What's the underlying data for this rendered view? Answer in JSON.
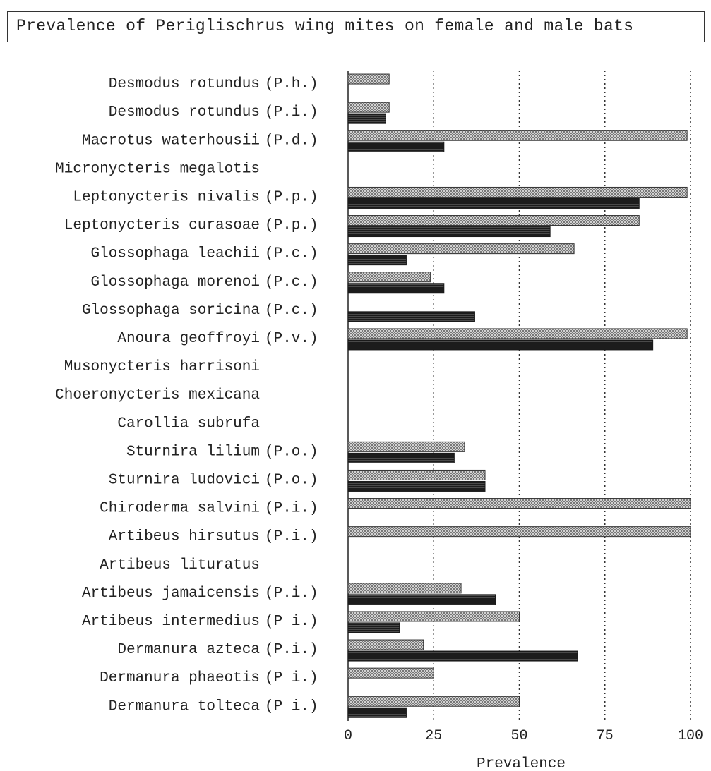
{
  "chart_data": {
    "type": "bar",
    "orientation": "horizontal",
    "title": "Prevalence of Periglischrus wing mites on female and male bats",
    "xlabel": "Prevalence",
    "ylabel": "",
    "xlim": [
      0,
      100
    ],
    "xticks": [
      "0",
      "25",
      "50",
      "75",
      "100"
    ],
    "grid": "vertical dotted lines at 25, 50, 75, 100",
    "legend": "none",
    "series_styles": {
      "female": {
        "fill": "#bdbdbd",
        "pattern": "checkered"
      },
      "male": {
        "fill": "#2e2e2e",
        "pattern": "horizontal lines"
      }
    },
    "categories": [
      {
        "species": "Desmodus  rotundus",
        "mite": "(P.h.)",
        "female": 12,
        "male": null
      },
      {
        "species": "Desmodus  rotundus",
        "mite": "(P.i.)",
        "female": 12,
        "male": 11
      },
      {
        "species": "Macrotus  waterhousii",
        "mite": "(P.d.)",
        "female": 99,
        "male": 28
      },
      {
        "species": "Micronycteris megalotis",
        "mite": "",
        "female": null,
        "male": null
      },
      {
        "species": "Leptonycteris nivalis",
        "mite": "(P.p.)",
        "female": 99,
        "male": 85
      },
      {
        "species": "Leptonycteris  curasoae",
        "mite": "(P.p.)",
        "female": 85,
        "male": 59
      },
      {
        "species": "Glossophaga leachii",
        "mite": "(P.c.)",
        "female": 66,
        "male": 17
      },
      {
        "species": "Glossophaga morenoi",
        "mite": "(P.c.)",
        "female": 24,
        "male": 28
      },
      {
        "species": "Glossophaga soricina",
        "mite": "(P.c.)",
        "female": null,
        "male": 37
      },
      {
        "species": "Anoura geoffroyi",
        "mite": "(P.v.)",
        "female": 99,
        "male": 89
      },
      {
        "species": "Musonycteris harrisoni",
        "mite": "",
        "female": null,
        "male": null
      },
      {
        "species": "Choeronycteris mexicana",
        "mite": "",
        "female": null,
        "male": null
      },
      {
        "species": "Carollia subrufa",
        "mite": "",
        "female": null,
        "male": null
      },
      {
        "species": "Sturnira lilium",
        "mite": "(P.o.)",
        "female": 34,
        "male": 31
      },
      {
        "species": "Sturnira ludovici",
        "mite": "(P.o.)",
        "female": 40,
        "male": 40
      },
      {
        "species": "Chiroderma salvini",
        "mite": "(P.i.)",
        "female": 100,
        "male": null
      },
      {
        "species": "Artibeus hirsutus",
        "mite": "(P.i.)",
        "female": 100,
        "male": null
      },
      {
        "species": "Artibeus lituratus",
        "mite": "",
        "female": null,
        "male": null
      },
      {
        "species": "Artibeus jamaicensis",
        "mite": "(P.i.)",
        "female": 33,
        "male": 43
      },
      {
        "species": "Artibeus intermedius",
        "mite": "(P i.)",
        "female": 50,
        "male": 15
      },
      {
        "species": "Dermanura azteca",
        "mite": "(P.i.)",
        "female": 22,
        "male": 67
      },
      {
        "species": "Dermanura phaeotis",
        "mite": "(P i.)",
        "female": 25,
        "male": null
      },
      {
        "species": "Dermanura tolteca",
        "mite": "(P i.)",
        "female": 50,
        "male": 17
      }
    ]
  }
}
